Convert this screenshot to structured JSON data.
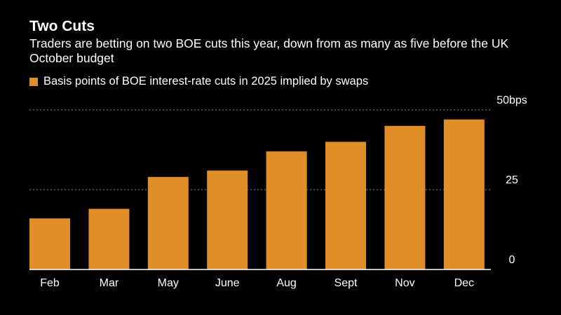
{
  "header": {
    "title": "Two Cuts",
    "subtitle": "Traders are betting on two BOE cuts this year, down from as many as five before the UK October budget"
  },
  "legend": {
    "label": "Basis points of BOE interest-rate cuts in 2025 implied by swaps"
  },
  "colors": {
    "bar": "#E08E28",
    "background": "#000000",
    "gridline": "#8a8a8a",
    "text": "#ffffff"
  },
  "chart_data": {
    "type": "bar",
    "title": "Two Cuts",
    "categories": [
      "Feb",
      "Mar",
      "May",
      "June",
      "Aug",
      "Sept",
      "Nov",
      "Dec"
    ],
    "series": [
      {
        "name": "Basis points of BOE interest-rate cuts in 2025 implied by swaps",
        "values": [
          16,
          19,
          29,
          31,
          37,
          40,
          45,
          47
        ]
      }
    ],
    "ylim": [
      0,
      50
    ],
    "yticks": [
      0,
      25,
      50
    ],
    "ytick_labels": [
      "0",
      "25",
      "50bps"
    ],
    "y_axis_side": "right",
    "grid": true,
    "xlabel": "",
    "ylabel": ""
  }
}
